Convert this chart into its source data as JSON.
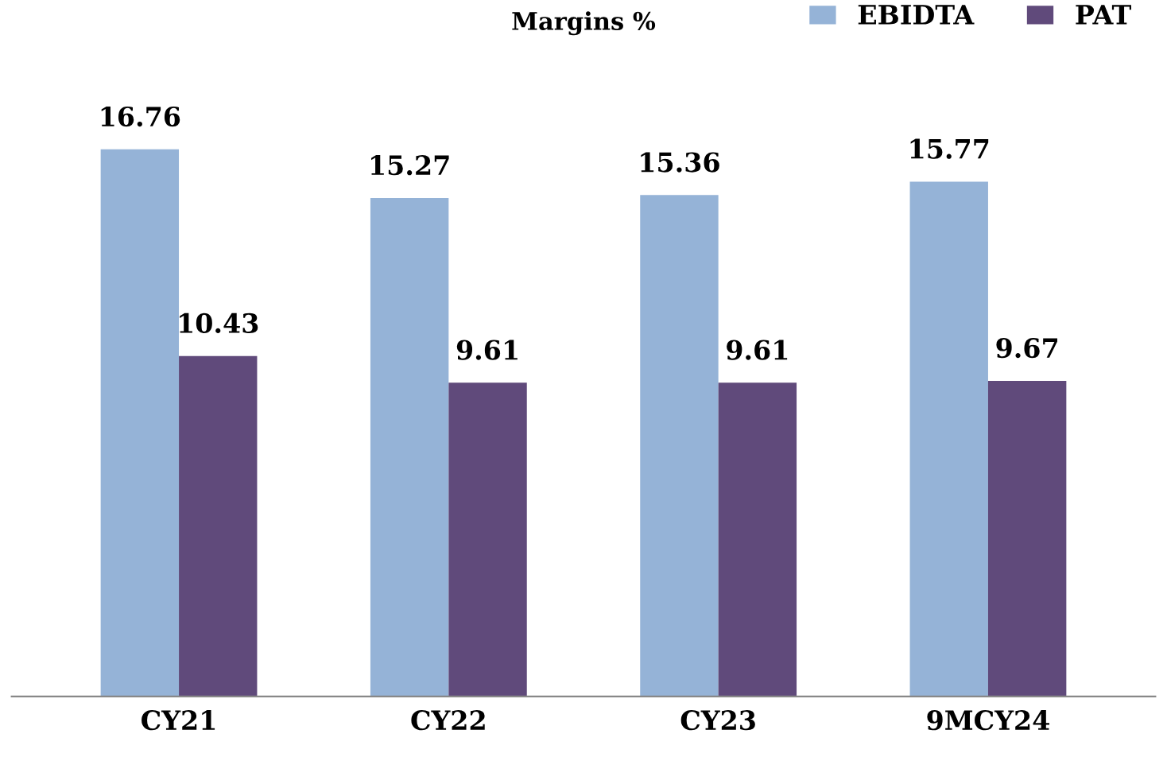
{
  "chart_data": {
    "type": "bar",
    "title": "Margins %",
    "categories": [
      "CY21",
      "CY22",
      "CY23",
      "9MCY24"
    ],
    "series": [
      {
        "name": "EBIDTA",
        "color": "#95b3d7",
        "values": [
          16.76,
          15.27,
          15.36,
          15.77
        ]
      },
      {
        "name": "PAT",
        "color": "#604a7b",
        "values": [
          10.43,
          9.61,
          9.61,
          9.67
        ]
      }
    ],
    "data_labels": true,
    "legend": "top right",
    "grid": false
  }
}
